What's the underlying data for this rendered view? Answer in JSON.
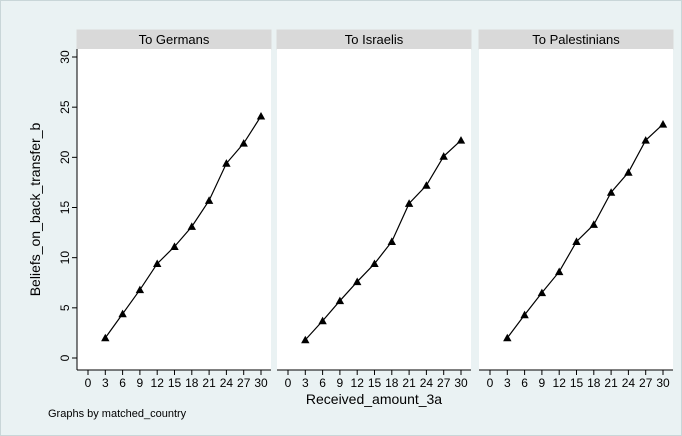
{
  "chart_data": {
    "type": "line",
    "title": "",
    "xlabel": "Received_amount_3a",
    "ylabel": "Beliefs_on_back_transfer_b",
    "xlim": [
      0,
      30
    ],
    "ylim": [
      0,
      30
    ],
    "xticks": [
      0,
      3,
      6,
      9,
      12,
      15,
      18,
      21,
      24,
      27,
      30
    ],
    "yticks": [
      0,
      5,
      10,
      15,
      20,
      25,
      30
    ],
    "x": [
      3,
      6,
      9,
      12,
      15,
      18,
      21,
      24,
      27,
      30
    ],
    "marker": "triangle",
    "grid": false,
    "note": "Graphs by matched_country",
    "panels": [
      {
        "title": "To Germans",
        "values": [
          2.0,
          4.4,
          6.8,
          9.4,
          11.1,
          13.1,
          15.7,
          19.4,
          21.4,
          24.1
        ]
      },
      {
        "title": "To Israelis",
        "values": [
          1.8,
          3.7,
          5.7,
          7.6,
          9.4,
          11.6,
          15.4,
          17.2,
          20.1,
          21.7
        ]
      },
      {
        "title": "To Palestinians",
        "values": [
          2.0,
          4.3,
          6.5,
          8.6,
          11.6,
          13.3,
          16.5,
          18.5,
          21.7,
          23.3
        ]
      }
    ]
  }
}
